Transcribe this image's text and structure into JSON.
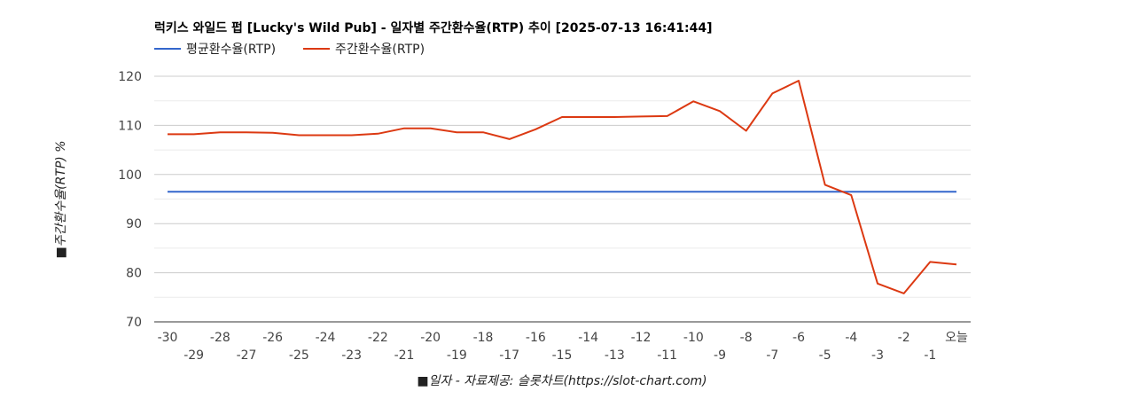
{
  "chart_data": {
    "type": "line",
    "title": "럭키스 와일드 펍 [Lucky's Wild Pub] - 일자별 주간환수율(RTP) 추이 [2025-07-13 16:41:44]",
    "xlabel": "■일자 - 자료제공: 슬롯차트(https://slot-chart.com)",
    "ylabel": "■주간환수율(RTP) %",
    "categories": [
      "-30",
      "-29",
      "-28",
      "-27",
      "-26",
      "-25",
      "-24",
      "-23",
      "-22",
      "-21",
      "-20",
      "-19",
      "-18",
      "-17",
      "-16",
      "-15",
      "-14",
      "-13",
      "-12",
      "-11",
      "-10",
      "-9",
      "-8",
      "-7",
      "-6",
      "-5",
      "-4",
      "-3",
      "-2",
      "-1",
      "오늘"
    ],
    "ylim": [
      70,
      120
    ],
    "yticks": [
      "70",
      "80",
      "90",
      "100",
      "110",
      "120"
    ],
    "series": [
      {
        "name": "평균환수율(RTP)",
        "color": "#3366cc",
        "values": [
          96.5,
          96.5,
          96.5,
          96.5,
          96.5,
          96.5,
          96.5,
          96.5,
          96.5,
          96.5,
          96.5,
          96.5,
          96.5,
          96.5,
          96.5,
          96.5,
          96.5,
          96.5,
          96.5,
          96.5,
          96.5,
          96.5,
          96.5,
          96.5,
          96.5,
          96.5,
          96.5,
          96.5,
          96.5,
          96.5,
          96.5
        ]
      },
      {
        "name": "주간환수율(RTP)",
        "color": "#dc3912",
        "values": [
          108.2,
          108.2,
          108.6,
          108.6,
          108.5,
          108.0,
          108.0,
          108.0,
          108.3,
          109.4,
          109.4,
          108.6,
          108.6,
          107.2,
          109.2,
          111.7,
          111.7,
          111.7,
          111.8,
          111.9,
          114.9,
          112.9,
          108.9,
          116.5,
          119.1,
          97.9,
          95.8,
          77.8,
          75.8,
          82.2,
          81.7
        ]
      }
    ],
    "legend_position": "top-left",
    "grid": true
  }
}
